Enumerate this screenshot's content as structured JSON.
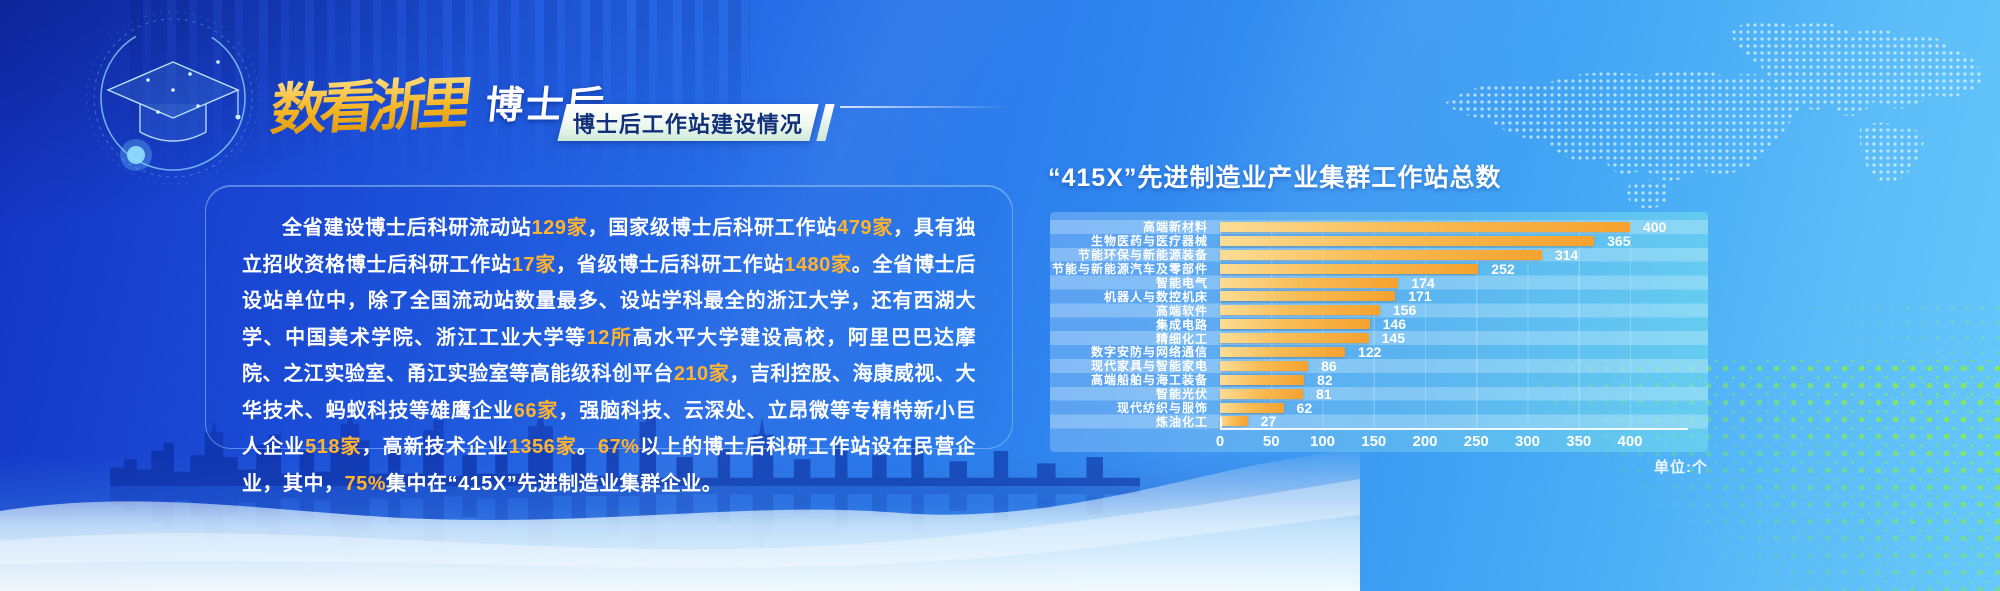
{
  "header": {
    "logo_main": "数看浙里",
    "logo_sub": "博士后",
    "badge": "博士后工作站建设情况",
    "logo_icon": "graduation-cap-icon"
  },
  "summary": {
    "segments": [
      {
        "t": "全省建设博士后科研流动站",
        "hl": false
      },
      {
        "t": "129家",
        "hl": true
      },
      {
        "t": "，国家级博士后科研工作站",
        "hl": false
      },
      {
        "t": "479家",
        "hl": true
      },
      {
        "t": "，具有独立招收资格博士后科研工作站",
        "hl": false
      },
      {
        "t": "17家",
        "hl": true
      },
      {
        "t": "，省级博士后科研工作站",
        "hl": false
      },
      {
        "t": "1480家",
        "hl": true
      },
      {
        "t": "。全省博士后设站单位中，除了全国流动站数量最多、设站学科最全的浙江大学，还有西湖大学、中国美术学院、浙江工业大学等",
        "hl": false
      },
      {
        "t": "12所",
        "hl": true
      },
      {
        "t": "高水平大学建设高校，阿里巴巴达摩院、之江实验室、甬江实验室等高能级科创平台",
        "hl": false
      },
      {
        "t": "210家",
        "hl": true
      },
      {
        "t": "，吉利控股、海康威视、大华技术、蚂蚁科技等雄鹰企业",
        "hl": false
      },
      {
        "t": "66家",
        "hl": true
      },
      {
        "t": "，强脑科技、云深处、立昂微等专精特新小巨人企业",
        "hl": false
      },
      {
        "t": "518家",
        "hl": true
      },
      {
        "t": "，高新技术企业",
        "hl": false
      },
      {
        "t": "1356家",
        "hl": true
      },
      {
        "t": "。",
        "hl": false
      },
      {
        "t": "67%",
        "hl": true
      },
      {
        "t": "以上的博士后科研工作站设在民营企业，其中，",
        "hl": false
      },
      {
        "t": "75%",
        "hl": true
      },
      {
        "t": "集中在“415X”先进制造业集群企业。",
        "hl": false
      }
    ]
  },
  "chart_data": {
    "type": "bar",
    "orientation": "horizontal",
    "title": "“415X”先进制造业产业集群工作站总数",
    "unit_label": "单位:个",
    "categories": [
      "高端新材料",
      "生物医药与医疗器械",
      "节能环保与新能源装备",
      "节能与新能源汽车及零部件",
      "智能电气",
      "机器人与数控机床",
      "高端软件",
      "集成电路",
      "精细化工",
      "数字安防与网络通信",
      "现代家具与智能家电",
      "高端船舶与海工装备",
      "智能光伏",
      "现代纺织与服饰",
      "炼油化工"
    ],
    "values": [
      400,
      365,
      314,
      252,
      174,
      171,
      156,
      146,
      145,
      122,
      86,
      82,
      81,
      62,
      27
    ],
    "x_ticks": [
      0,
      50,
      100,
      150,
      200,
      250,
      300,
      350,
      400
    ],
    "xlim": [
      0,
      430
    ],
    "grid": true,
    "legend": "none"
  },
  "colors": {
    "accent_gold": "#ffb32e",
    "bar_start": "#fbdd95",
    "bar_end": "#f5a22e",
    "badge_text": "#12307a",
    "bg_deep": "#1433c4",
    "bg_light": "#66c9fa",
    "halftone_green": "#84e75e"
  }
}
